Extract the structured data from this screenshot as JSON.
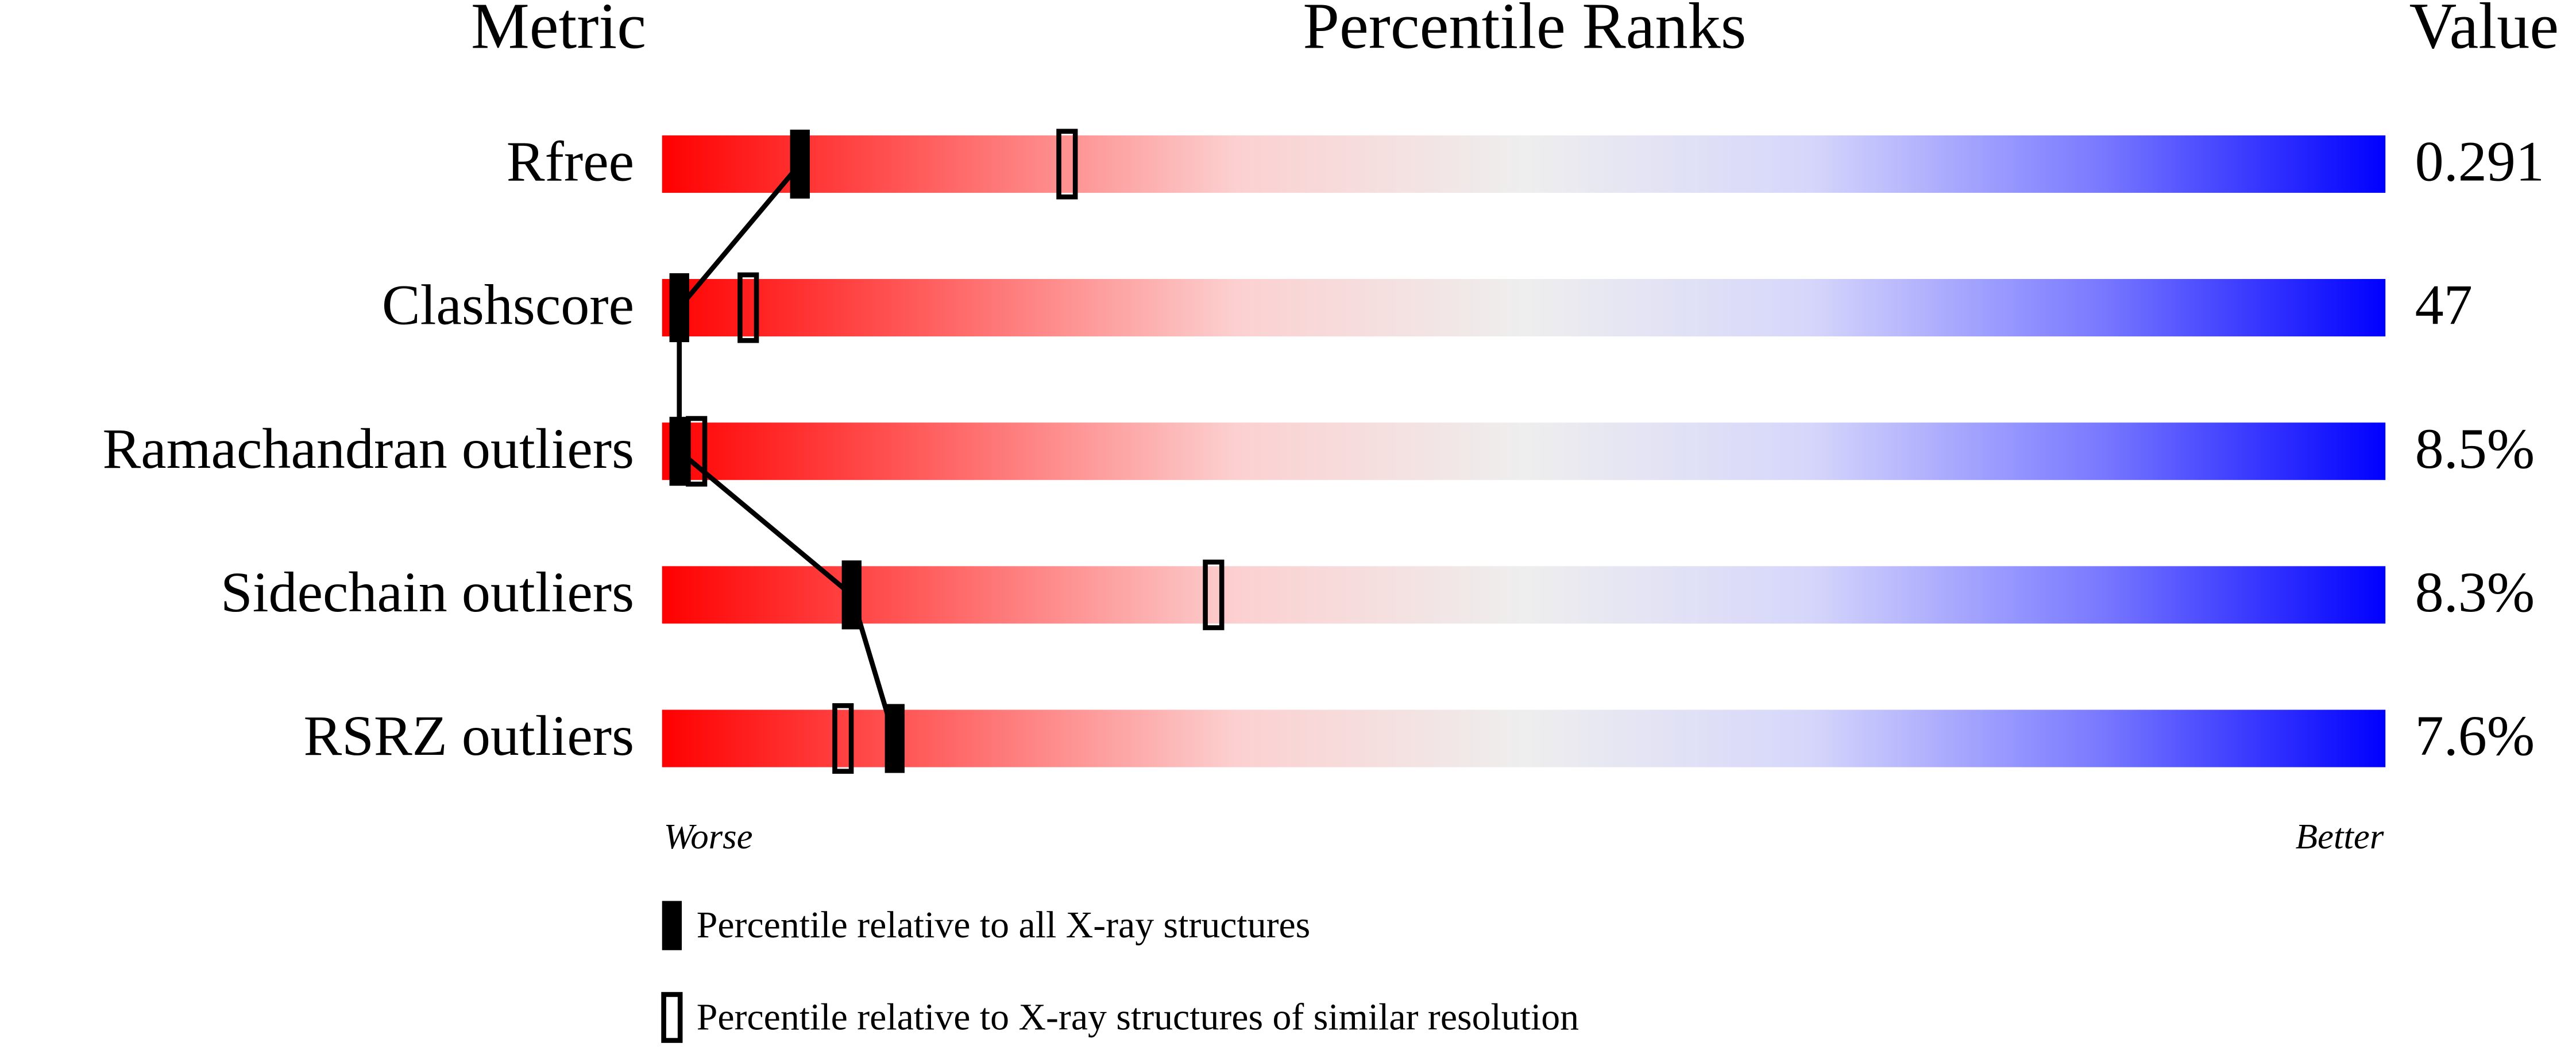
{
  "chart_data": {
    "type": "percentile",
    "headers": {
      "metric": "Metric",
      "ranks": "Percentile Ranks",
      "value": "Value"
    },
    "categories": [
      "Rfree",
      "Clashscore",
      "Ramachandran outliers",
      "Sidechain outliers",
      "RSRZ outliers"
    ],
    "value_labels": [
      "0.291",
      "47",
      "8.5%",
      "8.3%",
      "7.6%"
    ],
    "series": [
      {
        "name": "Percentile relative to all X-ray structures",
        "color": "#000000",
        "filled": true,
        "values": [
          8,
          1,
          1,
          11,
          13.5
        ]
      },
      {
        "name": "Percentile relative to X-ray structures of similar resolution",
        "color": "#000000",
        "filled": false,
        "values": [
          23.5,
          5,
          2,
          32,
          10.5
        ]
      }
    ],
    "xlim": [
      0,
      100
    ],
    "axis_labels": {
      "low": "Worse",
      "high": "Better"
    },
    "gradient": [
      "#ff0000",
      "#ff6666",
      "#fcd0d0",
      "#eeeeee",
      "#d6d6fb",
      "#7a7aff",
      "#0000ff"
    ]
  }
}
